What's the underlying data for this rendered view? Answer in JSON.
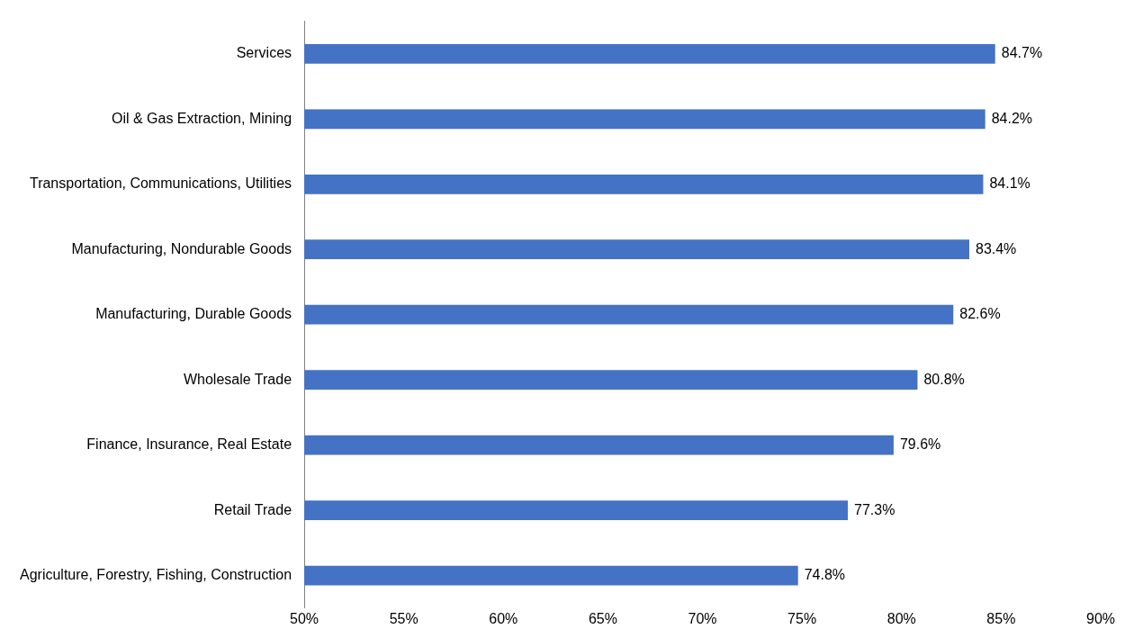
{
  "chart_data": {
    "type": "bar",
    "orientation": "horizontal",
    "categories": [
      "Services",
      "Oil & Gas Extraction, Mining",
      "Transportation, Communications, Utilities",
      "Manufacturing, Nondurable Goods",
      "Manufacturing, Durable Goods",
      "Wholesale Trade",
      "Finance, Insurance, Real Estate",
      "Retail Trade",
      "Agriculture, Forestry, Fishing, Construction"
    ],
    "values": [
      84.7,
      84.2,
      84.1,
      83.4,
      82.6,
      80.8,
      79.6,
      77.3,
      74.8
    ],
    "value_labels": [
      "84.7%",
      "84.2%",
      "84.1%",
      "83.4%",
      "82.6%",
      "80.8%",
      "79.6%",
      "77.3%",
      "74.8%"
    ],
    "color": "#4472c4",
    "xlim": [
      50,
      90
    ],
    "xticks": [
      {
        "value": 50,
        "label": "50%"
      },
      {
        "value": 55,
        "label": "55%"
      },
      {
        "value": 60,
        "label": "60%"
      },
      {
        "value": 65,
        "label": "65%"
      },
      {
        "value": 70,
        "label": "70%"
      },
      {
        "value": 75,
        "label": "75%"
      },
      {
        "value": 80,
        "label": "80%"
      },
      {
        "value": 85,
        "label": "85%"
      },
      {
        "value": 90,
        "label": "90%"
      }
    ],
    "grid": false,
    "legend": false
  }
}
